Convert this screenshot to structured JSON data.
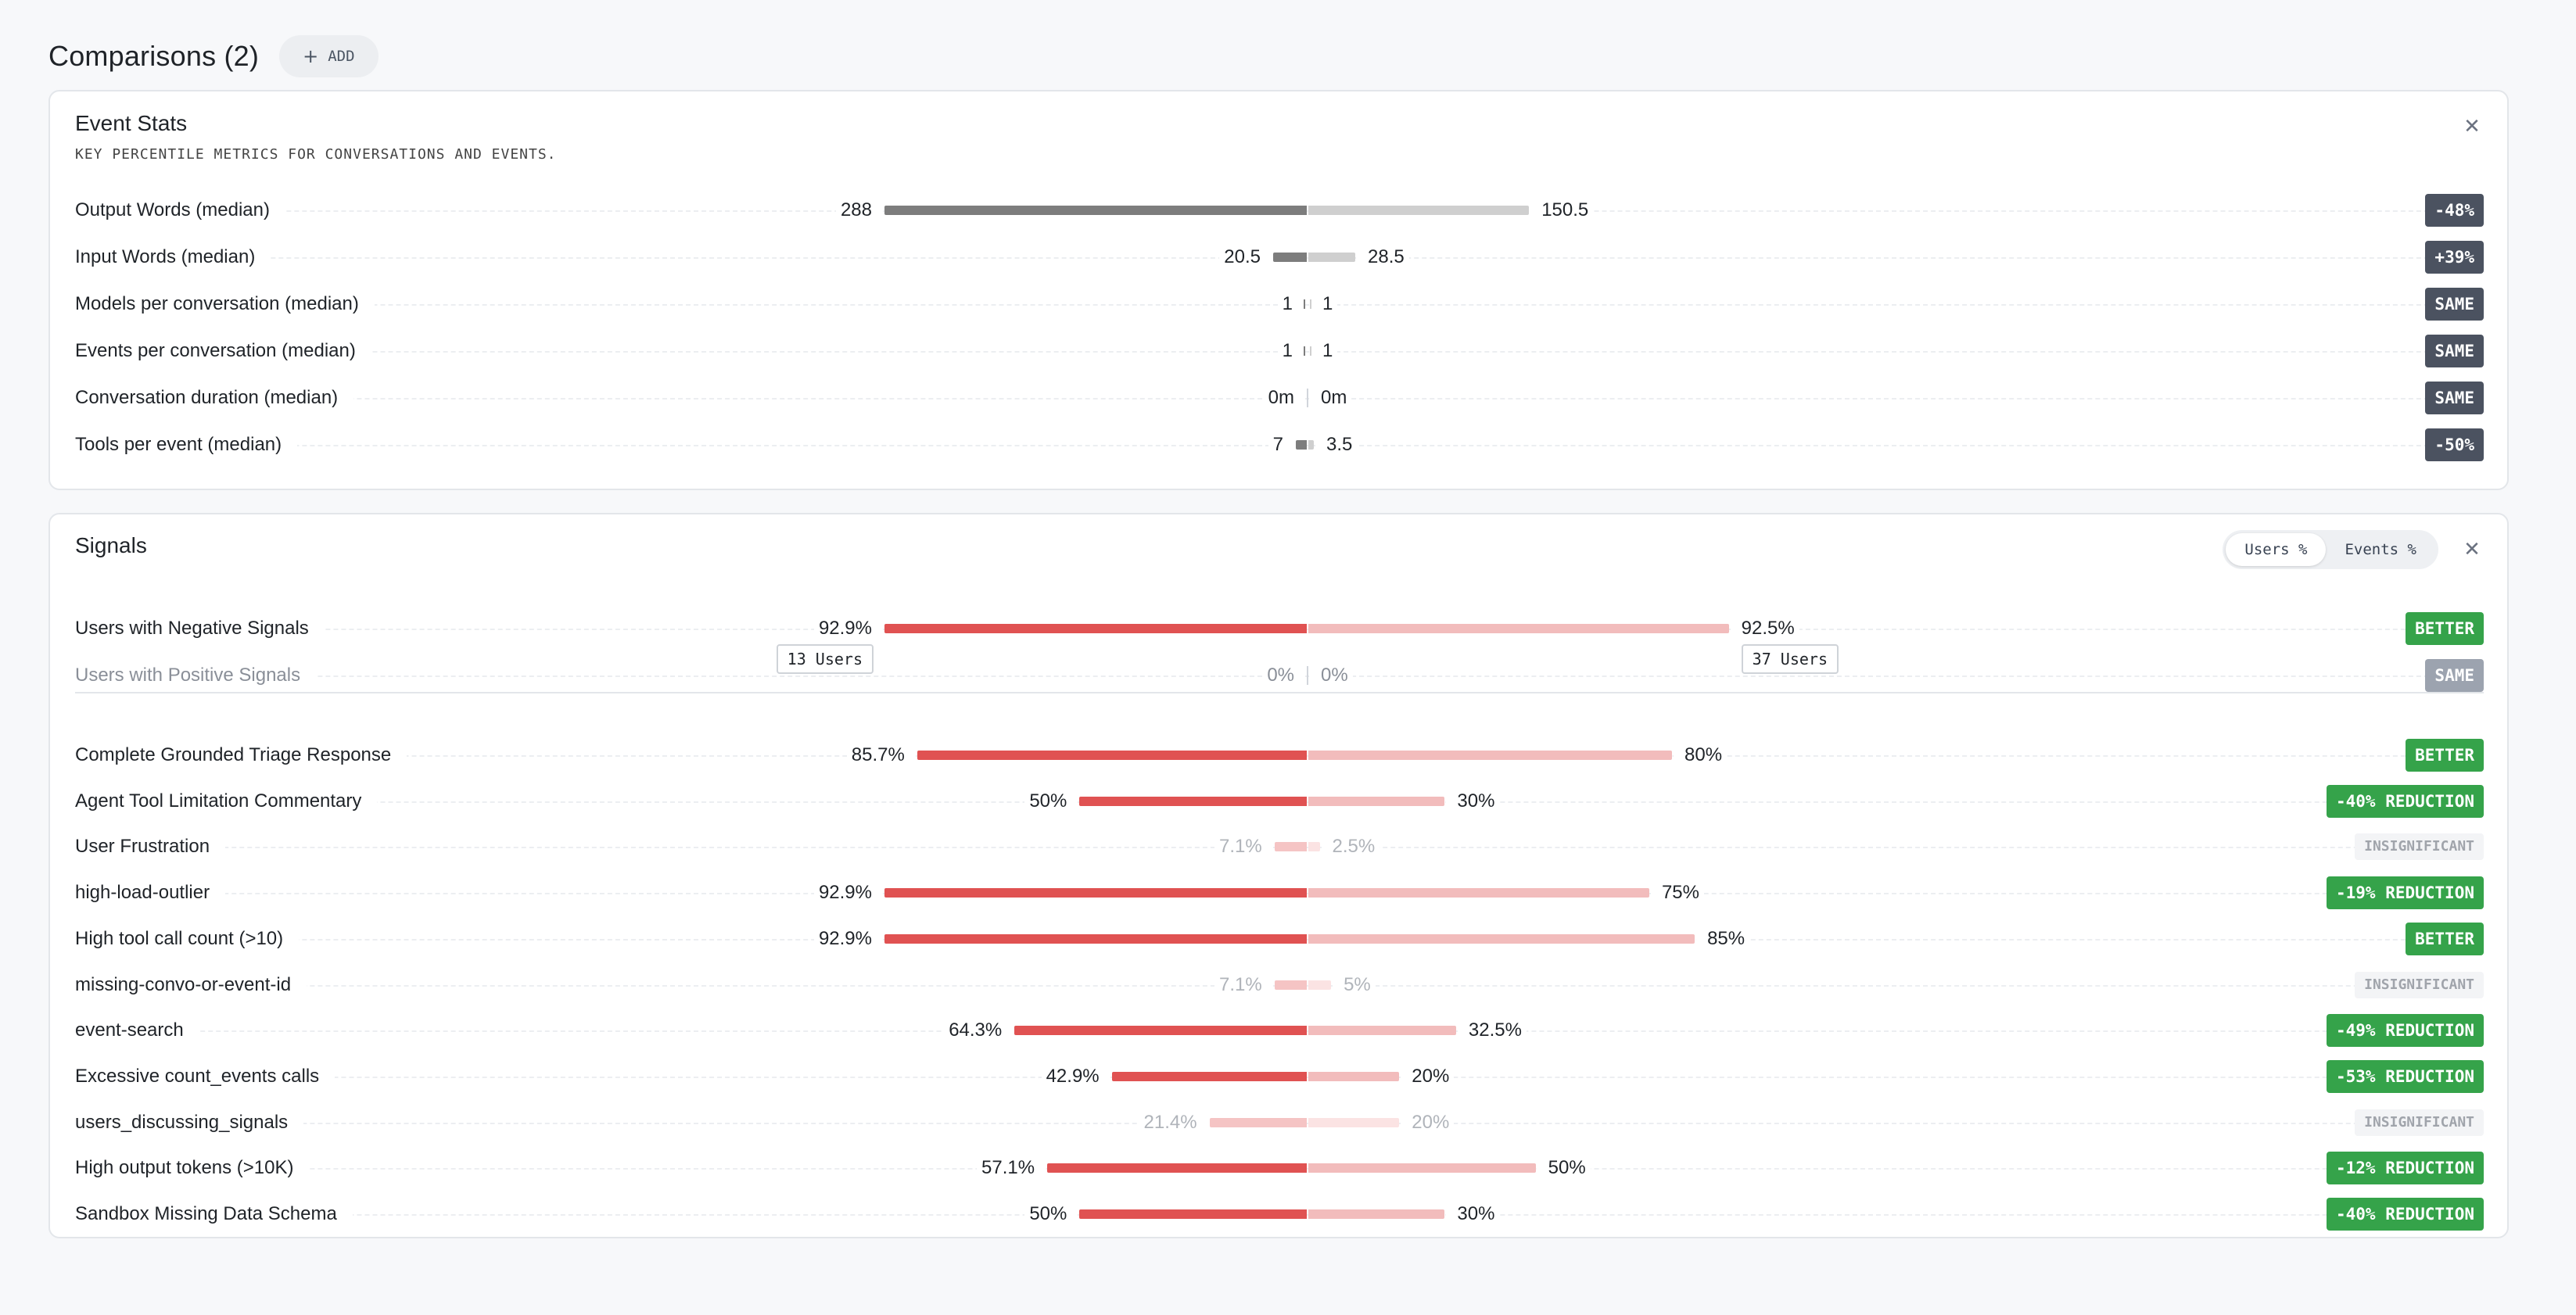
{
  "header": {
    "title": "Comparisons (2)",
    "add_label": "ADD"
  },
  "colors": {
    "neutral_left": "#7d7d7d",
    "neutral_right": "#cfcfcf",
    "signal_left": "#e05252",
    "signal_right": "#f2bcbc",
    "badge_dark": "#4b5260",
    "badge_green": "#35a34a"
  },
  "event_stats": {
    "title": "Event Stats",
    "subtitle": "KEY PERCENTILE METRICS FOR CONVERSATIONS AND EVENTS.",
    "rows": [
      {
        "label": "Output Words (median)",
        "left": "288",
        "right": "150.5",
        "left_value": 288,
        "right_value": 150.5,
        "badge": "-48%"
      },
      {
        "label": "Input Words (median)",
        "left": "20.5",
        "right": "28.5",
        "left_value": 20.5,
        "right_value": 28.5,
        "badge": "+39%"
      },
      {
        "label": "Models per conversation (median)",
        "left": "1",
        "right": "1",
        "left_value": 1,
        "right_value": 1,
        "badge": "SAME"
      },
      {
        "label": "Events per conversation (median)",
        "left": "1",
        "right": "1",
        "left_value": 1,
        "right_value": 1,
        "badge": "SAME"
      },
      {
        "label": "Conversation duration (median)",
        "left": "0m",
        "right": "0m",
        "left_value": 0,
        "right_value": 0,
        "badge": "SAME"
      },
      {
        "label": "Tools per event (median)",
        "left": "7",
        "right": "3.5",
        "left_value": 7,
        "right_value": 3.5,
        "badge": "-50%"
      }
    ]
  },
  "signals": {
    "title": "Signals",
    "toggle": [
      "Users %",
      "Events %"
    ],
    "summary": [
      {
        "label": "Users with Negative Signals",
        "left": "92.9%",
        "right": "92.5%",
        "left_value": 92.9,
        "right_value": 92.5,
        "badge": "BETTER",
        "left_users": "13 Users",
        "right_users": "37 Users"
      },
      {
        "label": "Users with Positive Signals",
        "left": "0%",
        "right": "0%",
        "left_value": 0,
        "right_value": 0,
        "badge": "SAME"
      }
    ],
    "rows": [
      {
        "label": "Complete Grounded Triage Response",
        "left": "85.7%",
        "right": "80%",
        "left_value": 85.7,
        "right_value": 80,
        "badge": "BETTER"
      },
      {
        "label": "Agent Tool Limitation Commentary",
        "left": "50%",
        "right": "30%",
        "left_value": 50,
        "right_value": 30,
        "badge": "-40% REDUCTION"
      },
      {
        "label": "User Frustration",
        "left": "7.1%",
        "right": "2.5%",
        "left_value": 7.1,
        "right_value": 2.5,
        "badge": "INSIGNIFICANT"
      },
      {
        "label": "high-load-outlier",
        "left": "92.9%",
        "right": "75%",
        "left_value": 92.9,
        "right_value": 75,
        "badge": "-19% REDUCTION"
      },
      {
        "label": "High tool call count (>10)",
        "left": "92.9%",
        "right": "85%",
        "left_value": 92.9,
        "right_value": 85,
        "badge": "BETTER"
      },
      {
        "label": "missing-convo-or-event-id",
        "left": "7.1%",
        "right": "5%",
        "left_value": 7.1,
        "right_value": 5,
        "badge": "INSIGNIFICANT"
      },
      {
        "label": "event-search",
        "left": "64.3%",
        "right": "32.5%",
        "left_value": 64.3,
        "right_value": 32.5,
        "badge": "-49% REDUCTION"
      },
      {
        "label": "Excessive count_events calls",
        "left": "42.9%",
        "right": "20%",
        "left_value": 42.9,
        "right_value": 20,
        "badge": "-53% REDUCTION"
      },
      {
        "label": "users_discussing_signals",
        "left": "21.4%",
        "right": "20%",
        "left_value": 21.4,
        "right_value": 20,
        "badge": "INSIGNIFICANT"
      },
      {
        "label": "High output tokens (>10K)",
        "left": "57.1%",
        "right": "50%",
        "left_value": 57.1,
        "right_value": 50,
        "badge": "-12% REDUCTION"
      },
      {
        "label": "Sandbox Missing Data Schema",
        "left": "50%",
        "right": "30%",
        "left_value": 50,
        "right_value": 30,
        "badge": "-40% REDUCTION"
      }
    ]
  }
}
